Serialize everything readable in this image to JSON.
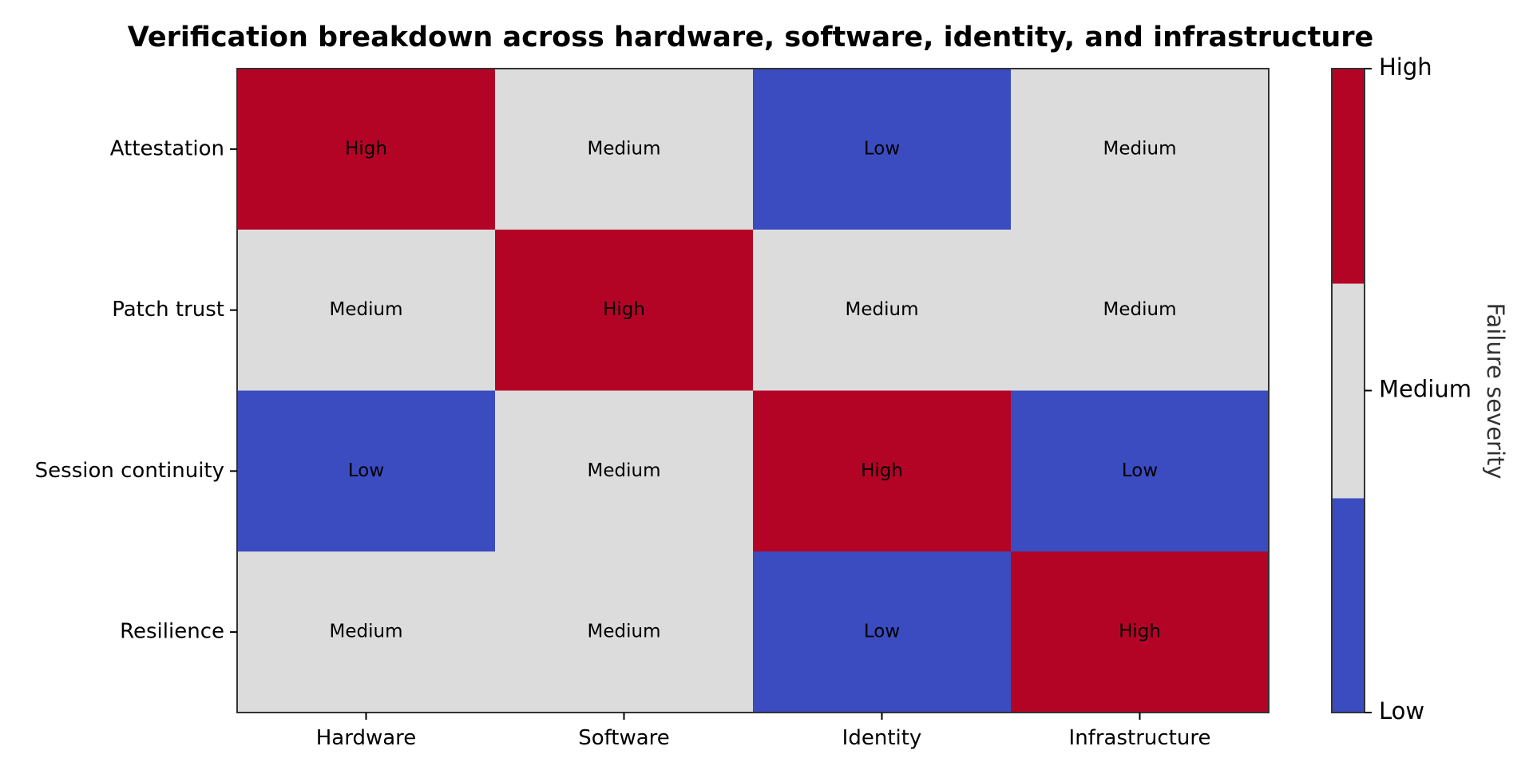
{
  "chart_data": {
    "type": "heatmap",
    "title": "Verification breakdown across hardware, software, identity, and infrastructure",
    "rows": [
      "Attestation",
      "Patch trust",
      "Session continuity",
      "Resilience"
    ],
    "columns": [
      "Hardware",
      "Software",
      "Identity",
      "Infrastructure"
    ],
    "values": [
      [
        "High",
        "Medium",
        "Low",
        "Medium"
      ],
      [
        "Medium",
        "High",
        "Medium",
        "Medium"
      ],
      [
        "Low",
        "Medium",
        "High",
        "Low"
      ],
      [
        "Medium",
        "Medium",
        "Low",
        "High"
      ]
    ],
    "levels": [
      "Low",
      "Medium",
      "High"
    ],
    "level_colors": {
      "Low": "#3b4cc0",
      "Medium": "#dcdcdc",
      "High": "#b40426"
    },
    "colorbar": {
      "label": "Failure severity",
      "ticks": [
        "Low",
        "Medium",
        "High"
      ]
    }
  }
}
